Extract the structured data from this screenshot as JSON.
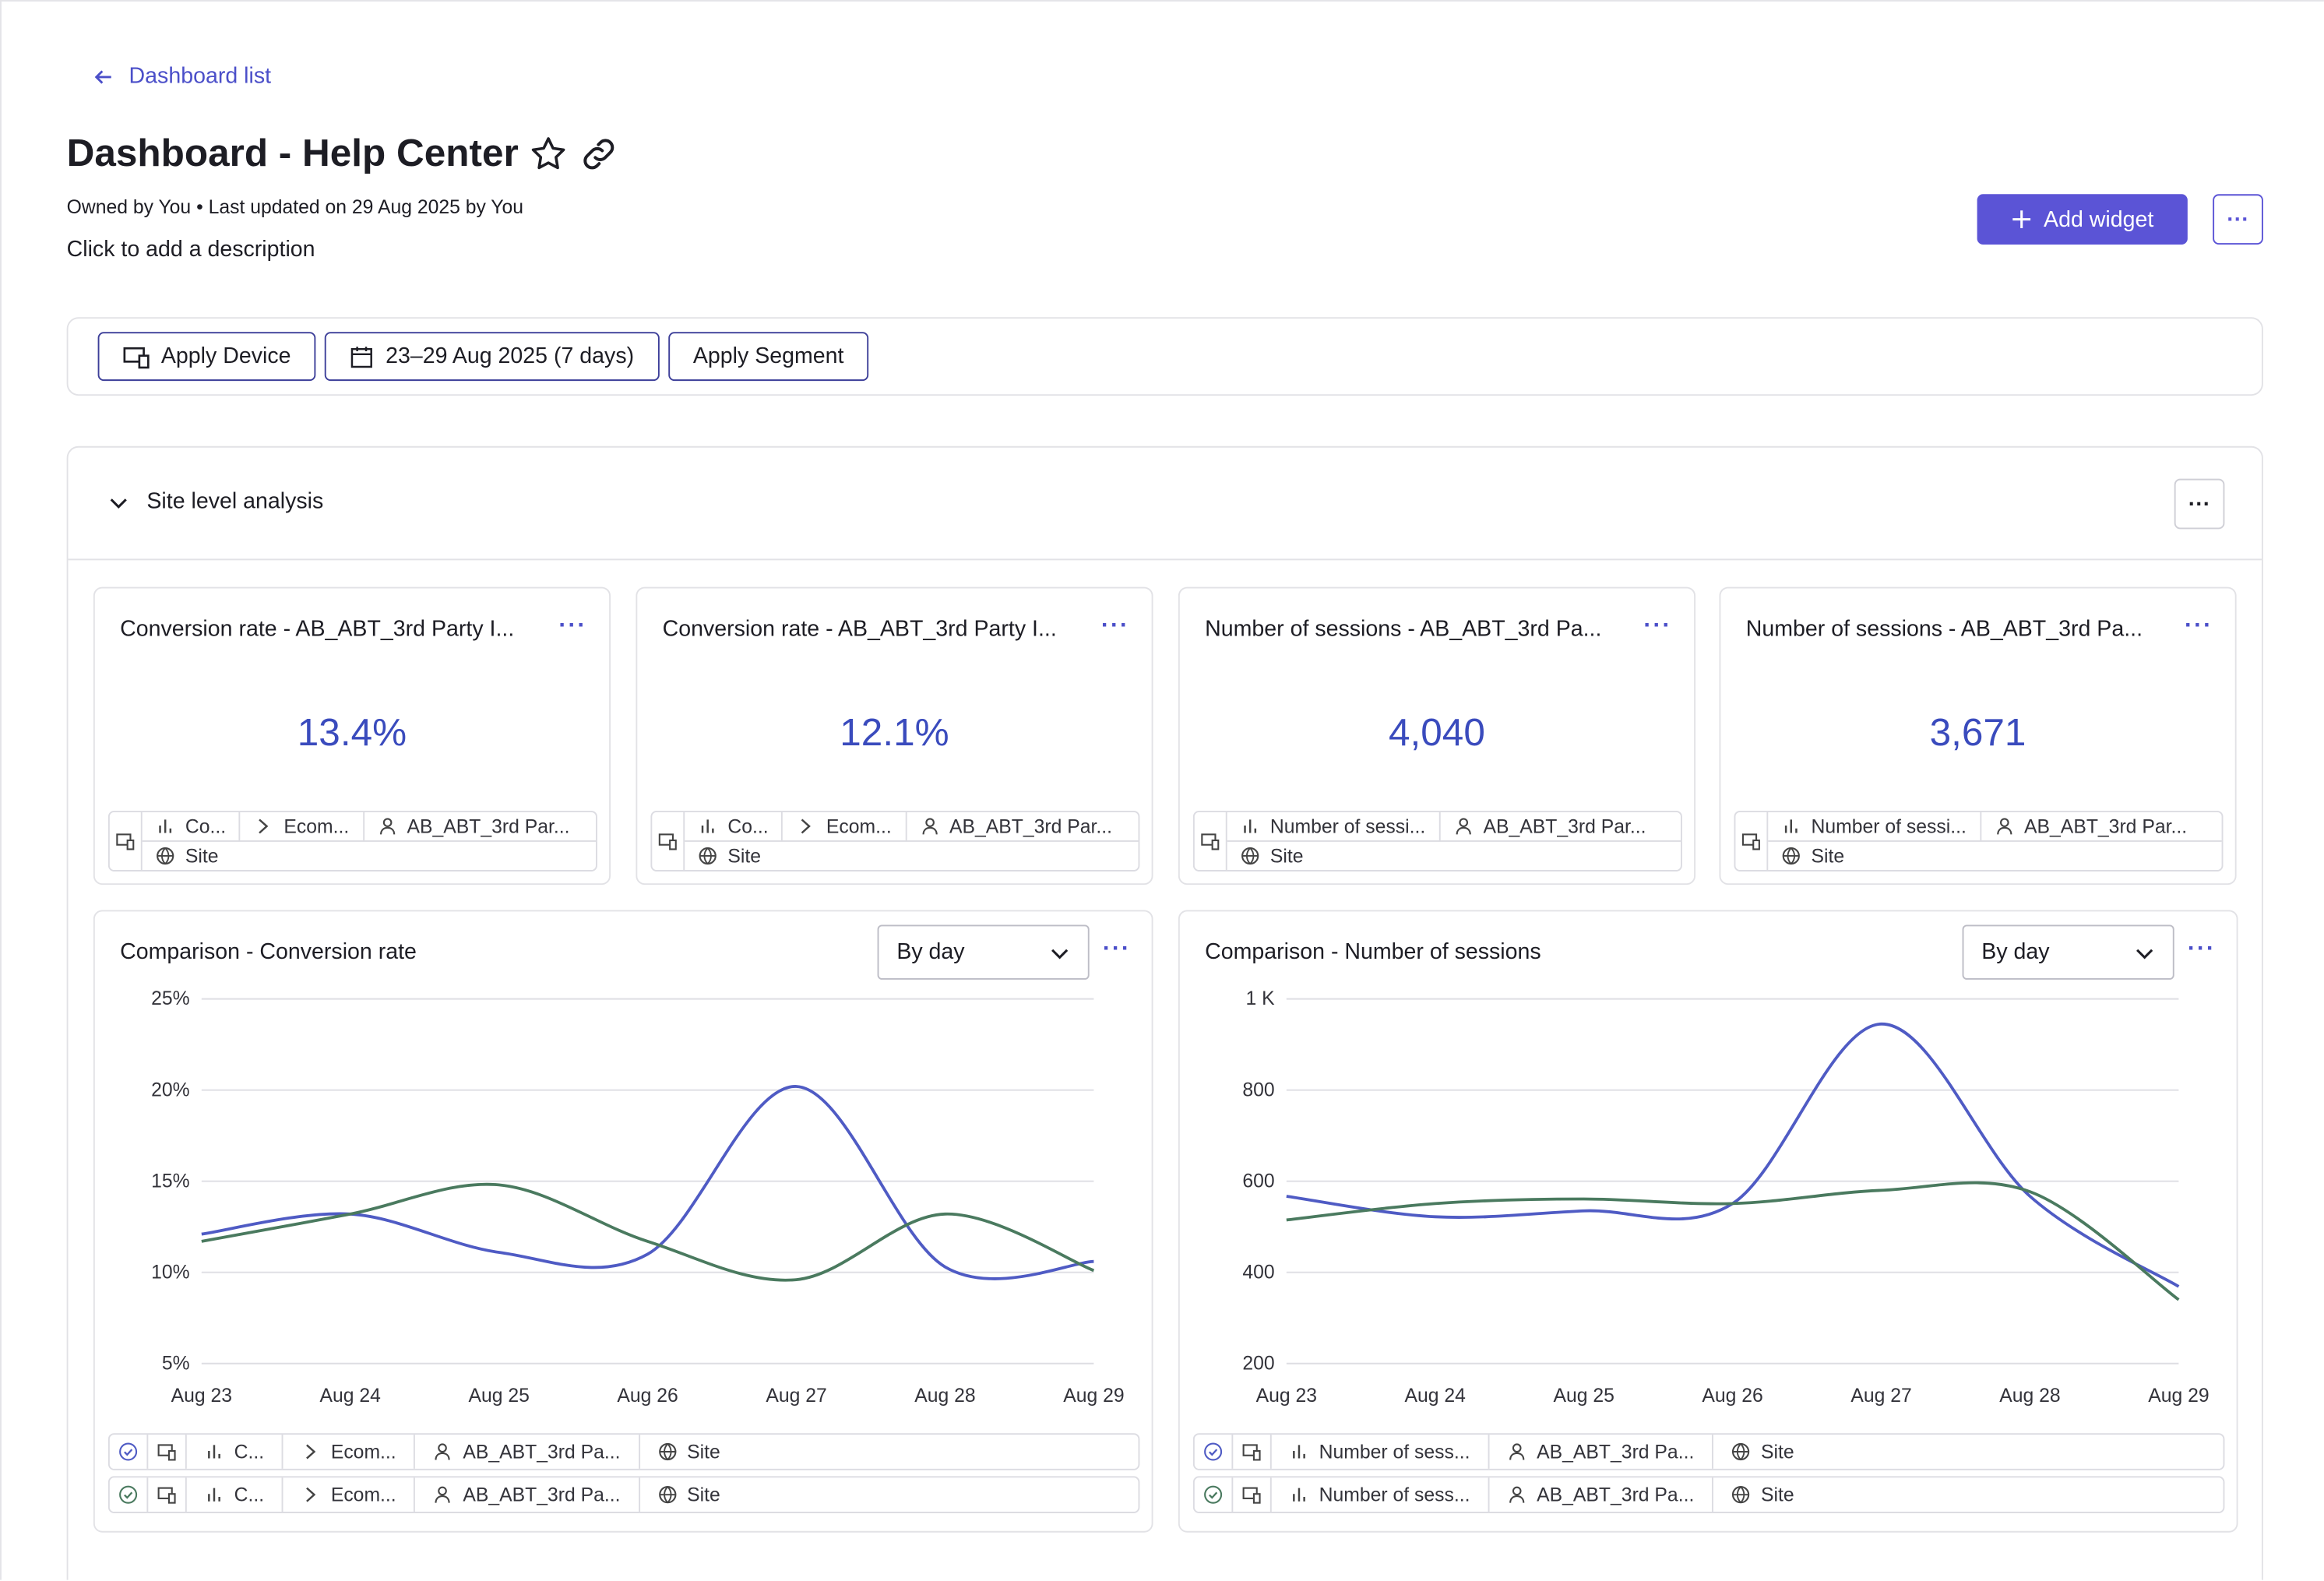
{
  "nav": {
    "back": "Dashboard list"
  },
  "header": {
    "title": "Dashboard - Help Center",
    "meta": "Owned by You • Last updated on 29 Aug 2025 by You",
    "description": "Click to add a description",
    "add_widget": "Add widget"
  },
  "filters": [
    "Apply Device",
    "23–29 Aug 2025 (7 days)",
    "Apply Segment"
  ],
  "section": {
    "title": "Site level analysis"
  },
  "kpis": [
    {
      "title": "Conversion rate - AB_ABT_3rd Party I...",
      "value": "13.4%",
      "tags": [
        "Co...",
        "Ecom...",
        "AB_ABT_3rd Par...",
        "Site"
      ]
    },
    {
      "title": "Conversion rate - AB_ABT_3rd Party I...",
      "value": "12.1%",
      "tags": [
        "Co...",
        "Ecom...",
        "AB_ABT_3rd Par...",
        "Site"
      ]
    },
    {
      "title": "Number of sessions - AB_ABT_3rd Pa...",
      "value": "4,040",
      "tags": [
        "Number of sessi...",
        "AB_ABT_3rd Par...",
        "Site"
      ]
    },
    {
      "title": "Number of sessions - AB_ABT_3rd Pa...",
      "value": "3,671",
      "tags": [
        "Number of sessi...",
        "AB_ABT_3rd Par...",
        "Site"
      ]
    }
  ],
  "chart_data": [
    {
      "type": "line",
      "title": "Comparison - Conversion rate",
      "interval": "By day",
      "categories": [
        "Aug 23",
        "Aug 24",
        "Aug 25",
        "Aug 26",
        "Aug 27",
        "Aug 28",
        "Aug 29"
      ],
      "ylim": [
        5,
        25
      ],
      "yticks": [
        {
          "value": 5,
          "label": "5%"
        },
        {
          "value": 10,
          "label": "10%"
        },
        {
          "value": 15,
          "label": "15%"
        },
        {
          "value": 20,
          "label": "20%"
        },
        {
          "value": 25,
          "label": "25%"
        }
      ],
      "grid": true,
      "series": [
        {
          "color": "#4f5bc4",
          "values": [
            12.1,
            13.2,
            11.1,
            11.0,
            20.2,
            10.3,
            10.6
          ],
          "tags": [
            "C...",
            "Ecom...",
            "AB_ABT_3rd Pa...",
            "Site"
          ]
        },
        {
          "color": "#4a7a5f",
          "values": [
            11.7,
            13.2,
            14.8,
            11.7,
            9.6,
            13.2,
            10.1
          ],
          "tags": [
            "C...",
            "Ecom...",
            "AB_ABT_3rd Pa...",
            "Site"
          ]
        }
      ]
    },
    {
      "type": "line",
      "title": "Comparison - Number of sessions",
      "interval": "By day",
      "categories": [
        "Aug 23",
        "Aug 24",
        "Aug 25",
        "Aug 26",
        "Aug 27",
        "Aug 28",
        "Aug 29"
      ],
      "ylim": [
        200,
        1000
      ],
      "yticks": [
        200,
        400,
        600,
        800,
        {
          "value": 1000,
          "label": "1 K"
        }
      ],
      "grid": true,
      "series": [
        {
          "color": "#4f5bc4",
          "values": [
            567,
            522,
            535,
            551,
            945,
            567,
            369
          ],
          "tags": [
            "Number of sess...",
            "AB_ABT_3rd Pa...",
            "Site"
          ]
        },
        {
          "color": "#4a7a5f",
          "values": [
            515,
            551,
            561,
            551,
            580,
            577,
            340
          ],
          "tags": [
            "Number of sess...",
            "AB_ABT_3rd Pa...",
            "Site"
          ]
        }
      ]
    }
  ]
}
